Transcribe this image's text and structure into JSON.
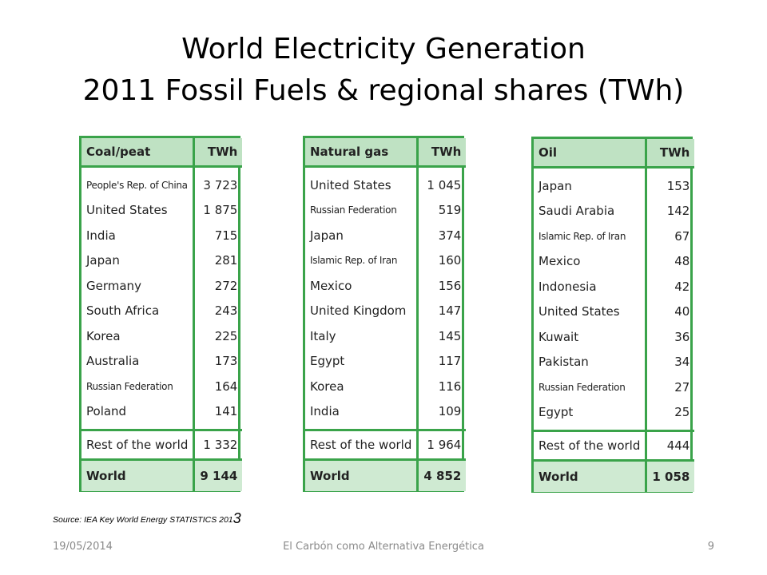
{
  "title": {
    "line1": "World Electricity Generation",
    "line2": "2011 Fossil Fuels & regional shares  (TWh)"
  },
  "tables": [
    {
      "header": "Coal/peat",
      "unit": "TWh",
      "rows": [
        {
          "name": "People's Rep. of China",
          "value": "3 723"
        },
        {
          "name": "United States",
          "value": "1 875"
        },
        {
          "name": "India",
          "value": "715"
        },
        {
          "name": "Japan",
          "value": "281"
        },
        {
          "name": "Germany",
          "value": "272"
        },
        {
          "name": "South Africa",
          "value": "243"
        },
        {
          "name": "Korea",
          "value": "225"
        },
        {
          "name": "Australia",
          "value": "173"
        },
        {
          "name": "Russian Federation",
          "value": "164"
        },
        {
          "name": "Poland",
          "value": "141"
        }
      ],
      "rest": {
        "name": "Rest of the world",
        "value": "1 332"
      },
      "world": {
        "name": "World",
        "value": "9 144"
      }
    },
    {
      "header": "Natural gas",
      "unit": "TWh",
      "rows": [
        {
          "name": "United States",
          "value": "1 045"
        },
        {
          "name": "Russian Federation",
          "value": "519"
        },
        {
          "name": "Japan",
          "value": "374"
        },
        {
          "name": "Islamic Rep. of Iran",
          "value": "160"
        },
        {
          "name": "Mexico",
          "value": "156"
        },
        {
          "name": "United Kingdom",
          "value": "147"
        },
        {
          "name": "Italy",
          "value": "145"
        },
        {
          "name": "Egypt",
          "value": "117"
        },
        {
          "name": "Korea",
          "value": "116"
        },
        {
          "name": "India",
          "value": "109"
        }
      ],
      "rest": {
        "name": "Rest of the world",
        "value": "1 964"
      },
      "world": {
        "name": "World",
        "value": "4 852"
      }
    },
    {
      "header": "Oil",
      "unit": "TWh",
      "rows": [
        {
          "name": "Japan",
          "value": "153"
        },
        {
          "name": "Saudi Arabia",
          "value": "142"
        },
        {
          "name": "Islamic Rep. of Iran",
          "value": "67"
        },
        {
          "name": "Mexico",
          "value": "48"
        },
        {
          "name": "Indonesia",
          "value": "42"
        },
        {
          "name": "United States",
          "value": "40"
        },
        {
          "name": "Kuwait",
          "value": "36"
        },
        {
          "name": "Pakistan",
          "value": "34"
        },
        {
          "name": "Russian Federation",
          "value": "27"
        },
        {
          "name": "Egypt",
          "value": "25"
        }
      ],
      "rest": {
        "name": "Rest of the world",
        "value": "444"
      },
      "world": {
        "name": "World",
        "value": "1 058"
      }
    }
  ],
  "source": {
    "text": "Source: IEA Key World Energy STATISTICS 201",
    "suffix": "3"
  },
  "footer": {
    "date": "19/05/2014",
    "presentation": "El Carbón como Alternativa Energética",
    "page": "9"
  },
  "colors": {
    "border": "#3aa34a",
    "header_bg": "#bfe2c3",
    "world_bg": "#cfead2"
  }
}
